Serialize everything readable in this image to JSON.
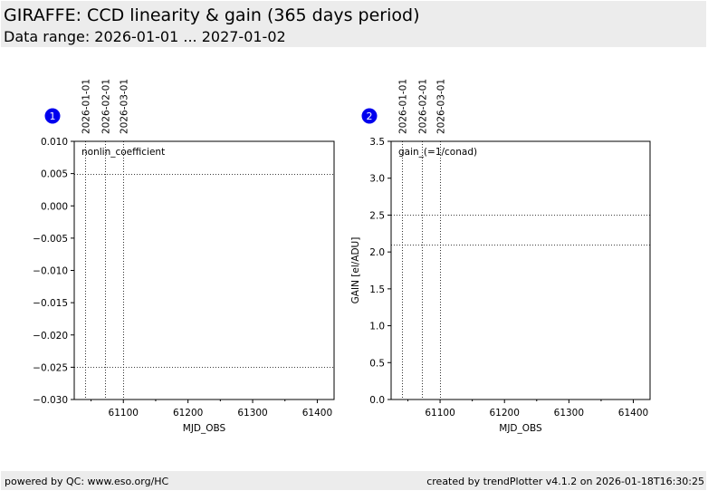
{
  "header": {
    "title": "GIRAFFE: CCD linearity & gain (365 days period)",
    "subtitle": "Data range: 2026-01-01 ... 2027-01-02"
  },
  "footer": {
    "left": "powered by QC: www.eso.org/HC",
    "right": "created by trendPlotter v4.1.2 on 2026-01-18T16:30:25"
  },
  "chart_data": [
    {
      "type": "scatter",
      "badge": "1",
      "label": "nonlin_coefficient",
      "xlabel": "MJD_OBS",
      "ylabel": "",
      "xlim": [
        61024,
        61426
      ],
      "ylim": [
        -0.03,
        0.01
      ],
      "xticks": [
        61100,
        61200,
        61300,
        61400
      ],
      "xtick_labels": [
        "61100",
        "61200",
        "61300",
        "61400"
      ],
      "yticks": [
        0.01,
        0.005,
        0.0,
        -0.005,
        -0.01,
        -0.015,
        -0.02,
        -0.025,
        -0.03
      ],
      "ytick_labels": [
        "0.010",
        "0.005",
        "0.000",
        "−0.005",
        "−0.010",
        "−0.015",
        "−0.020",
        "−0.025",
        "−0.030"
      ],
      "hlines": [
        0.005,
        -0.025
      ],
      "date_markers": [
        {
          "mjd": 61041,
          "label": "2026-01-01"
        },
        {
          "mjd": 61072,
          "label": "2026-02-01"
        },
        {
          "mjd": 61100,
          "label": "2026-03-01"
        }
      ],
      "series": []
    },
    {
      "type": "scatter",
      "badge": "2",
      "label": "gain_(=1/conad)",
      "xlabel": "MJD_OBS",
      "ylabel": "GAIN [el/ADU]",
      "xlim": [
        61024,
        61426
      ],
      "ylim": [
        0.0,
        3.5
      ],
      "xticks": [
        61100,
        61200,
        61300,
        61400
      ],
      "xtick_labels": [
        "61100",
        "61200",
        "61300",
        "61400"
      ],
      "yticks": [
        0.0,
        0.5,
        1.0,
        1.5,
        2.0,
        2.5,
        3.0,
        3.5
      ],
      "ytick_labels": [
        "0.0",
        "0.5",
        "1.0",
        "1.5",
        "2.0",
        "2.5",
        "3.0",
        "3.5"
      ],
      "hlines": [
        2.5,
        2.1
      ],
      "date_markers": [
        {
          "mjd": 61041,
          "label": "2026-01-01"
        },
        {
          "mjd": 61072,
          "label": "2026-02-01"
        },
        {
          "mjd": 61100,
          "label": "2026-03-01"
        }
      ],
      "series": []
    }
  ]
}
